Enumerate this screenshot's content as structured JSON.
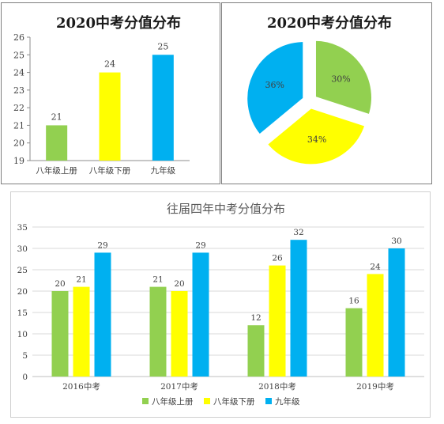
{
  "colors": {
    "green": "#92d050",
    "yellow": "#ffff00",
    "blue": "#00b0f0"
  },
  "chart_data": [
    {
      "type": "bar",
      "title": "2020中考分值分布",
      "categories": [
        "八年级上册",
        "八年级下册",
        "九年级"
      ],
      "values": [
        21,
        24,
        25
      ],
      "value_labels": [
        "21",
        "24",
        "25"
      ],
      "bar_colors": [
        "#92d050",
        "#ffff00",
        "#00b0f0"
      ],
      "ylim": [
        19,
        26
      ],
      "yticks": [
        "19",
        "20",
        "21",
        "22",
        "23",
        "24",
        "25",
        "26"
      ],
      "grid": false
    },
    {
      "type": "pie",
      "title": "2020中考分值分布",
      "slices": [
        {
          "label": "30%",
          "value": 30,
          "color": "#92d050"
        },
        {
          "label": "34%",
          "value": 34,
          "color": "#ffff00"
        },
        {
          "label": "36%",
          "value": 36,
          "color": "#00b0f0"
        }
      ]
    },
    {
      "type": "bar",
      "title": "往届四年中考分值分布",
      "categories": [
        "2016中考",
        "2017中考",
        "2018中考",
        "2019中考"
      ],
      "series": [
        {
          "name": "八年级上册",
          "values": [
            20,
            21,
            12,
            16
          ],
          "color": "#92d050"
        },
        {
          "name": "八年级下册",
          "values": [
            21,
            20,
            26,
            24
          ],
          "color": "#ffff00"
        },
        {
          "name": "九年级",
          "values": [
            29,
            29,
            32,
            30
          ],
          "color": "#00b0f0"
        }
      ],
      "ylim": [
        0,
        35
      ],
      "yticks": [
        "0",
        "5",
        "10",
        "15",
        "20",
        "25",
        "30",
        "35"
      ],
      "grid": true,
      "legend": "bottom"
    }
  ]
}
